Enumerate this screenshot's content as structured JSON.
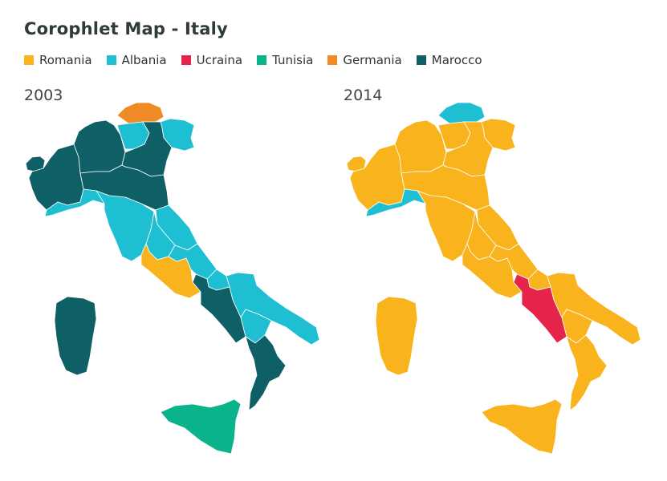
{
  "title": "Corophlet Map - Italy",
  "legend": [
    {
      "label": "Romania",
      "color": "#F9B31C"
    },
    {
      "label": "Albania",
      "color": "#1EBFD2"
    },
    {
      "label": "Ucraina",
      "color": "#E4244A"
    },
    {
      "label": "Tunisia",
      "color": "#0BB38A"
    },
    {
      "label": "Germania",
      "color": "#F08A24"
    },
    {
      "label": "Marocco",
      "color": "#0E5F66"
    }
  ],
  "maps": [
    {
      "year": "2003",
      "regions": {
        "trentino-alto-adige-north": "Germania",
        "trentino-alto-adige-south": "Albania",
        "friuli-venezia-giulia": "Albania",
        "veneto": "Marocco",
        "lombardia": "Marocco",
        "piemonte": "Marocco",
        "valle-d-aosta": "Marocco",
        "emilia-romagna": "Marocco",
        "liguria": "Albania",
        "toscana": "Albania",
        "umbria": "Albania",
        "marche": "Albania",
        "abruzzo": "Albania",
        "molise": "Albania",
        "lazio": "Romania",
        "campania": "Marocco",
        "puglia": "Albania",
        "basilicata": "Albania",
        "calabria": "Marocco",
        "sicilia": "Tunisia",
        "sardegna": "Marocco"
      }
    },
    {
      "year": "2014",
      "regions": {
        "trentino-alto-adige-north": "Albania",
        "trentino-alto-adige-south": "Romania",
        "friuli-venezia-giulia": "Romania",
        "veneto": "Romania",
        "lombardia": "Romania",
        "piemonte": "Romania",
        "valle-d-aosta": "Romania",
        "emilia-romagna": "Romania",
        "liguria": "Albania",
        "toscana": "Romania",
        "umbria": "Romania",
        "marche": "Romania",
        "abruzzo": "Romania",
        "molise": "Romania",
        "lazio": "Romania",
        "campania": "Ucraina",
        "puglia": "Romania",
        "basilicata": "Romania",
        "calabria": "Romania",
        "sicilia": "Romania",
        "sardegna": "Romania"
      }
    }
  ]
}
